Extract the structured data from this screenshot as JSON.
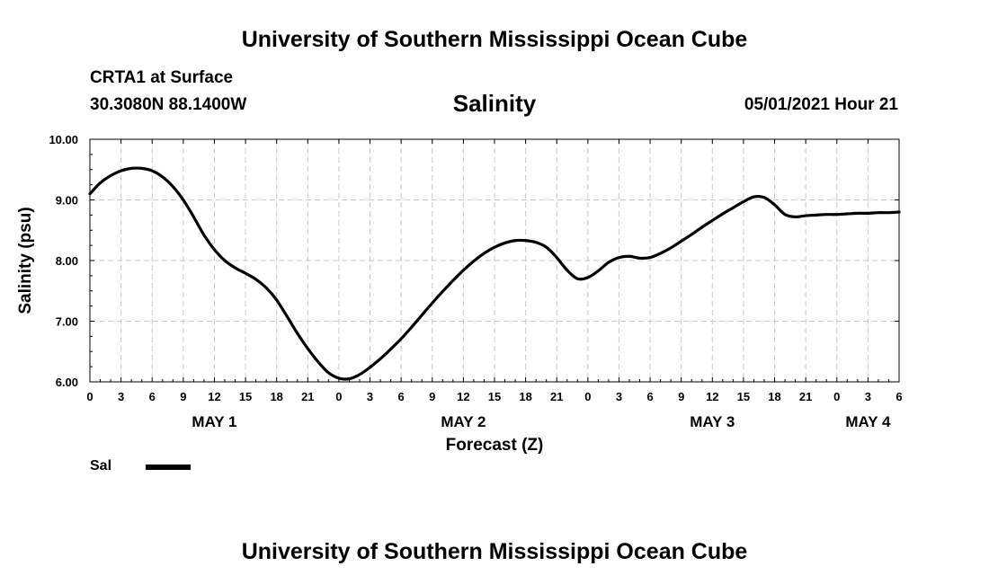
{
  "header": {
    "institution_title": "University of Southern Mississippi Ocean Cube",
    "station": "CRTA1 at Surface",
    "coordinates": "30.3080N  88.1400W",
    "parameter": "Salinity",
    "datetime": "05/01/2021 Hour 21"
  },
  "footer": {
    "institution_title": "University of Southern Mississippi Ocean Cube"
  },
  "legend": {
    "label": "Sal"
  },
  "chart_data": {
    "type": "line",
    "title": "Salinity",
    "xlabel": "Forecast (Z)",
    "ylabel": "Salinity (psu)",
    "x_unit": "hours since 2021-05-01 00Z",
    "xlim": [
      0,
      78
    ],
    "ylim": [
      6.0,
      10.0
    ],
    "y_ticks": [
      6.0,
      7.0,
      8.0,
      9.0,
      10.0
    ],
    "y_tick_labels": [
      "6.00",
      "7.00",
      "8.00",
      "9.00",
      "10.00"
    ],
    "x_ticks": [
      0,
      3,
      6,
      9,
      12,
      15,
      18,
      21,
      24,
      27,
      30,
      33,
      36,
      39,
      42,
      45,
      48,
      51,
      54,
      57,
      60,
      63,
      66,
      69,
      72,
      75,
      78
    ],
    "x_tick_labels": [
      "0",
      "3",
      "6",
      "9",
      "12",
      "15",
      "18",
      "21",
      "0",
      "3",
      "6",
      "9",
      "12",
      "15",
      "18",
      "21",
      "0",
      "3",
      "6",
      "9",
      "12",
      "15",
      "18",
      "21",
      "0",
      "3",
      "6"
    ],
    "day_labels": [
      {
        "label": "MAY 1",
        "x": 12
      },
      {
        "label": "MAY 2",
        "x": 36
      },
      {
        "label": "MAY 3",
        "x": 60
      },
      {
        "label": "MAY 4",
        "x": 75
      }
    ],
    "grid": true,
    "series": [
      {
        "name": "Sal",
        "color": "#000000",
        "x": [
          0,
          1,
          2,
          3,
          4,
          5,
          6,
          7,
          8,
          9,
          10,
          11,
          12,
          13,
          14,
          15,
          16,
          17,
          18,
          19,
          20,
          21,
          22,
          23,
          24,
          25,
          26,
          27,
          28,
          29,
          30,
          31,
          32,
          33,
          34,
          35,
          36,
          37,
          38,
          39,
          40,
          41,
          42,
          43,
          44,
          45,
          46,
          47,
          48,
          49,
          50,
          51,
          52,
          53,
          54,
          55,
          56,
          57,
          58,
          59,
          60,
          61,
          62,
          63,
          64,
          65,
          66,
          67,
          68,
          69,
          70,
          71,
          72,
          73,
          74,
          75,
          76,
          77,
          78
        ],
        "values": [
          9.1,
          9.28,
          9.4,
          9.48,
          9.52,
          9.52,
          9.48,
          9.38,
          9.22,
          9.0,
          8.72,
          8.42,
          8.18,
          8.0,
          7.88,
          7.79,
          7.69,
          7.55,
          7.35,
          7.08,
          6.8,
          6.55,
          6.33,
          6.15,
          6.06,
          6.05,
          6.12,
          6.24,
          6.38,
          6.54,
          6.71,
          6.9,
          7.1,
          7.3,
          7.49,
          7.67,
          7.84,
          7.99,
          8.12,
          8.22,
          8.29,
          8.33,
          8.33,
          8.3,
          8.22,
          8.05,
          7.84,
          7.7,
          7.72,
          7.83,
          7.97,
          8.05,
          8.07,
          8.04,
          8.05,
          8.12,
          8.21,
          8.32,
          8.43,
          8.55,
          8.66,
          8.77,
          8.87,
          8.97,
          9.05,
          9.04,
          8.92,
          8.76,
          8.72,
          8.74,
          8.75,
          8.76,
          8.76,
          8.77,
          8.78,
          8.78,
          8.79,
          8.79,
          8.8
        ]
      }
    ]
  }
}
